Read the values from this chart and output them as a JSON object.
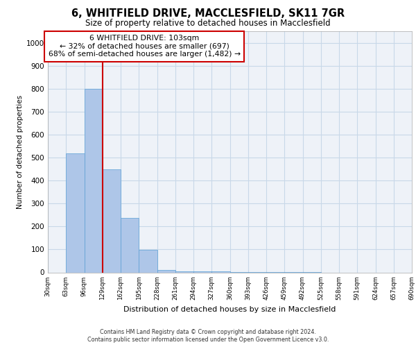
{
  "title_line1": "6, WHITFIELD DRIVE, MACCLESFIELD, SK11 7GR",
  "title_line2": "Size of property relative to detached houses in Macclesfield",
  "xlabel": "Distribution of detached houses by size in Macclesfield",
  "ylabel": "Number of detached properties",
  "bar_values": [
    0,
    519,
    800,
    449,
    237,
    97,
    11,
    5,
    6,
    4,
    3,
    2,
    1,
    1,
    1,
    0,
    0,
    0,
    0,
    0
  ],
  "bin_labels": [
    "30sqm",
    "63sqm",
    "96sqm",
    "129sqm",
    "162sqm",
    "195sqm",
    "228sqm",
    "261sqm",
    "294sqm",
    "327sqm",
    "360sqm",
    "393sqm",
    "426sqm",
    "459sqm",
    "492sqm",
    "525sqm",
    "558sqm",
    "591sqm",
    "624sqm",
    "657sqm",
    "690sqm"
  ],
  "bar_color": "#aec6e8",
  "bar_edge_color": "#5a9fd4",
  "grid_color": "#c8d8e8",
  "background_color": "#eef2f8",
  "vline_color": "#cc0000",
  "vline_x_index": 2.5,
  "annotation_text": "6 WHITFIELD DRIVE: 103sqm\n← 32% of detached houses are smaller (697)\n68% of semi-detached houses are larger (1,482) →",
  "annotation_box_color": "#ffffff",
  "annotation_box_edge_color": "#cc0000",
  "ylim": [
    0,
    1050
  ],
  "yticks": [
    0,
    100,
    200,
    300,
    400,
    500,
    600,
    700,
    800,
    900,
    1000
  ],
  "footer_line1": "Contains HM Land Registry data © Crown copyright and database right 2024.",
  "footer_line2": "Contains public sector information licensed under the Open Government Licence v3.0."
}
